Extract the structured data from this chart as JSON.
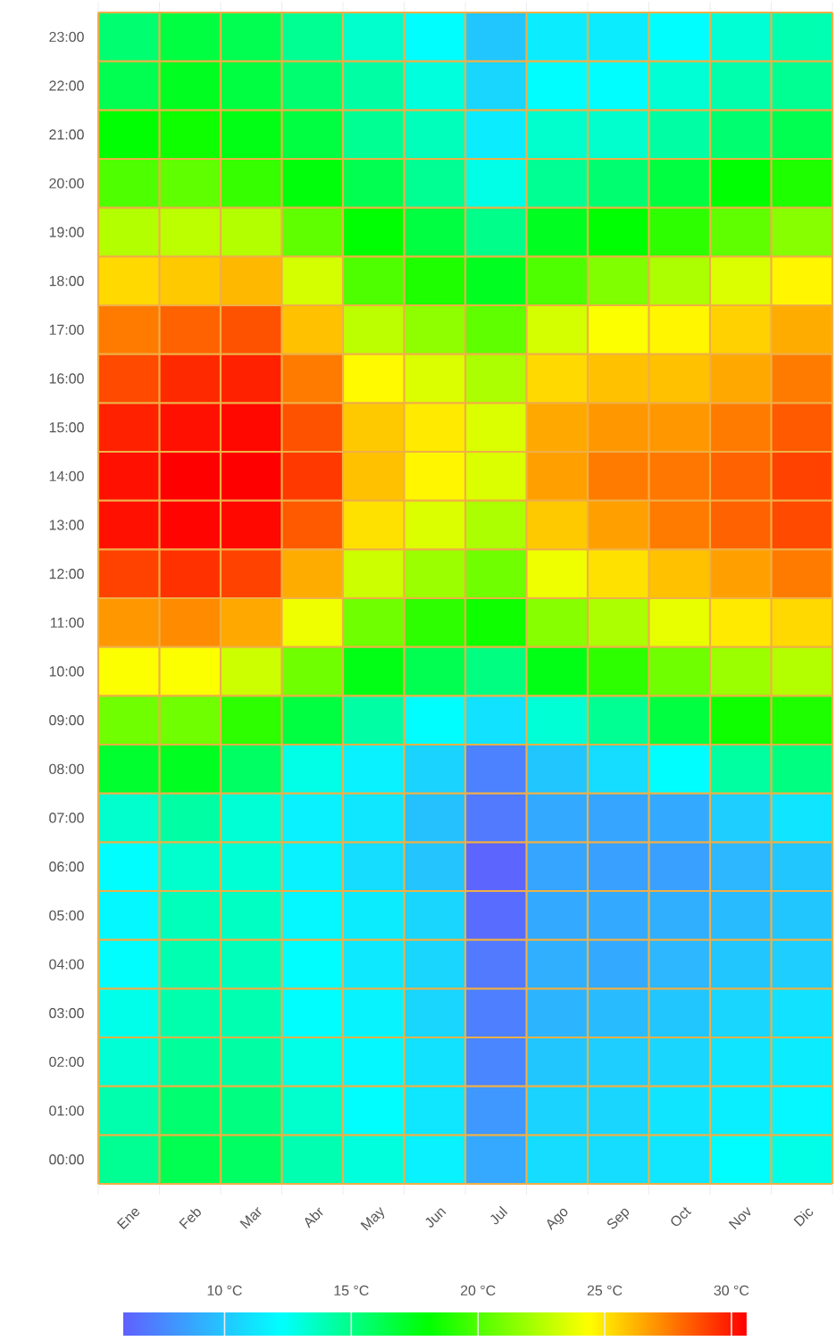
{
  "chart_data": {
    "type": "heatmap",
    "categories": [
      "Ene",
      "Feb",
      "Mar",
      "Abr",
      "May",
      "Jun",
      "Jul",
      "Ago",
      "Sep",
      "Oct",
      "Nov",
      "Dic"
    ],
    "y_categories": [
      "23:00",
      "22:00",
      "21:00",
      "20:00",
      "19:00",
      "18:00",
      "17:00",
      "16:00",
      "15:00",
      "14:00",
      "13:00",
      "12:00",
      "11:00",
      "10:00",
      "09:00",
      "08:00",
      "07:00",
      "06:00",
      "05:00",
      "04:00",
      "03:00",
      "02:00",
      "01:00",
      "00:00"
    ],
    "cells": [
      [
        15.5,
        16.6,
        16.2,
        14.7,
        13.4,
        12.2,
        10.0,
        11.5,
        11.5,
        12.2,
        13.2,
        14.0
      ],
      [
        16.2,
        17.3,
        16.6,
        15.5,
        14.3,
        13.0,
        10.6,
        12.2,
        12.2,
        13.2,
        14.1,
        14.7
      ],
      [
        18.0,
        18.4,
        17.6,
        16.6,
        14.7,
        13.8,
        11.5,
        13.4,
        13.4,
        14.3,
        15.5,
        16.2
      ],
      [
        20.0,
        20.4,
        19.4,
        17.8,
        16.2,
        14.7,
        12.8,
        14.7,
        15.5,
        16.6,
        18.0,
        18.8
      ],
      [
        22.5,
        22.7,
        22.5,
        20.4,
        18.0,
        16.6,
        14.9,
        17.3,
        18.0,
        19.2,
        20.4,
        21.4
      ],
      [
        25.3,
        25.7,
        26.1,
        23.3,
        20.0,
        18.8,
        17.3,
        20.0,
        21.2,
        22.3,
        23.5,
        24.6
      ],
      [
        27.6,
        28.2,
        28.6,
        25.9,
        22.7,
        21.6,
        20.4,
        23.3,
        24.3,
        24.6,
        25.5,
        26.4
      ],
      [
        28.8,
        29.6,
        29.8,
        27.6,
        24.5,
        23.5,
        22.3,
        25.3,
        25.9,
        25.9,
        26.5,
        27.6
      ],
      [
        29.8,
        30.2,
        30.4,
        28.6,
        25.7,
        24.9,
        23.5,
        26.5,
        26.9,
        26.9,
        27.6,
        28.4
      ],
      [
        30.2,
        30.6,
        30.6,
        29.2,
        25.9,
        24.6,
        23.5,
        26.7,
        27.6,
        27.7,
        28.2,
        29.0
      ],
      [
        30.2,
        30.5,
        30.4,
        28.4,
        25.1,
        23.5,
        22.3,
        25.7,
        26.7,
        27.6,
        28.2,
        28.8
      ],
      [
        29.0,
        29.4,
        29.0,
        26.4,
        23.1,
        21.9,
        20.8,
        24.0,
        25.1,
        25.9,
        26.7,
        27.6
      ],
      [
        26.9,
        27.2,
        26.5,
        24.0,
        20.8,
        19.2,
        18.4,
        21.4,
        22.3,
        23.8,
        24.9,
        25.3
      ],
      [
        24.3,
        24.3,
        23.1,
        20.8,
        17.6,
        16.2,
        15.1,
        17.6,
        19.2,
        20.8,
        21.9,
        22.5
      ],
      [
        20.8,
        20.8,
        19.2,
        16.6,
        14.3,
        12.2,
        11.1,
        13.2,
        14.7,
        16.6,
        18.4,
        18.8
      ],
      [
        17.0,
        17.3,
        15.8,
        12.8,
        11.7,
        10.5,
        7.3,
        10.0,
        10.9,
        12.2,
        14.4,
        15.1
      ],
      [
        13.4,
        14.3,
        13.2,
        11.7,
        11.3,
        9.8,
        7.0,
        8.9,
        8.7,
        8.9,
        10.3,
        11.2
      ],
      [
        12.2,
        13.4,
        13.2,
        11.7,
        10.9,
        9.9,
        6.2,
        8.7,
        8.5,
        8.5,
        9.4,
        10.0
      ],
      [
        12.0,
        13.8,
        13.6,
        11.9,
        11.5,
        10.6,
        6.5,
        8.9,
        8.9,
        9.1,
        9.6,
        10.0
      ],
      [
        12.2,
        14.0,
        13.8,
        12.2,
        11.4,
        10.6,
        7.0,
        9.1,
        8.9,
        9.4,
        10.0,
        10.3
      ],
      [
        12.7,
        14.1,
        14.0,
        12.2,
        11.8,
        10.6,
        7.2,
        9.3,
        9.6,
        10.0,
        10.6,
        11.1
      ],
      [
        13.2,
        14.5,
        14.3,
        12.8,
        12.0,
        11.1,
        7.5,
        10.0,
        10.3,
        10.6,
        11.2,
        11.5
      ],
      [
        14.1,
        15.5,
        15.1,
        13.4,
        12.2,
        11.3,
        8.2,
        10.5,
        10.6,
        11.2,
        11.6,
        11.9
      ],
      [
        14.7,
        16.2,
        15.8,
        14.0,
        13.0,
        11.7,
        8.8,
        10.9,
        10.9,
        11.3,
        12.2,
        12.8
      ]
    ],
    "clim": [
      6,
      30.6
    ],
    "cticks": [
      {
        "value": 10,
        "label": "10 °C"
      },
      {
        "value": 15,
        "label": "15 °C"
      },
      {
        "value": 20,
        "label": "20 °C"
      },
      {
        "value": 25,
        "label": "25 °C"
      },
      {
        "value": 30,
        "label": "30 °C"
      }
    ]
  }
}
